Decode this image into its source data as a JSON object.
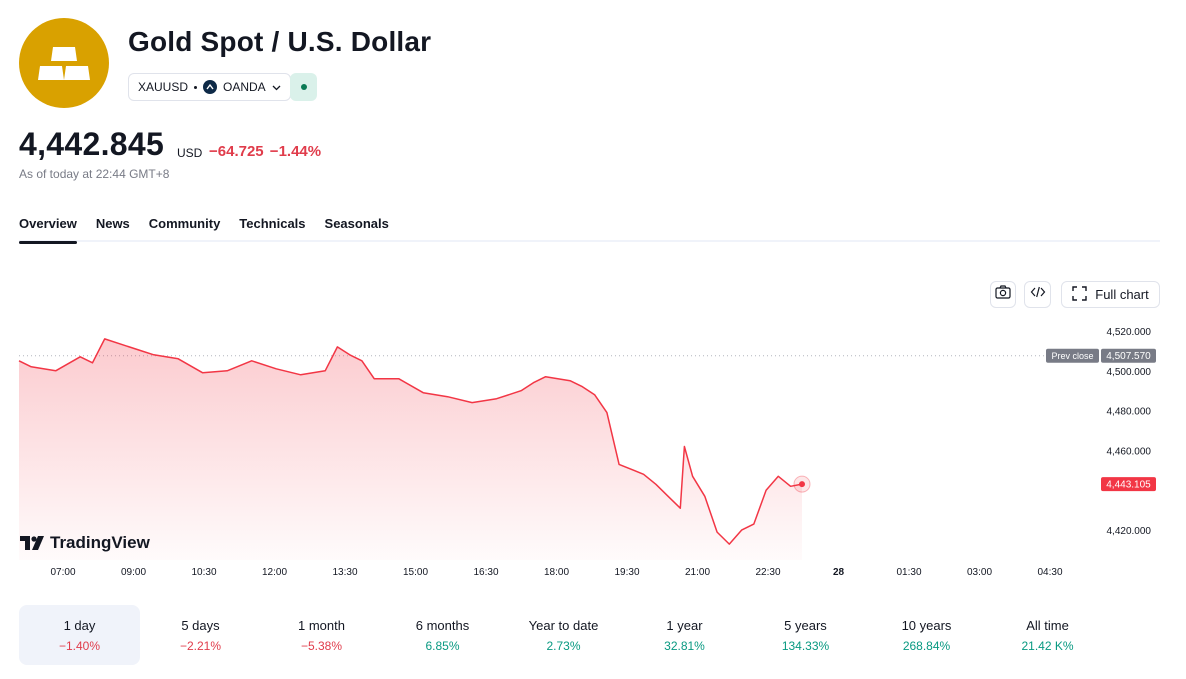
{
  "header": {
    "title": "Gold Spot / U.S. Dollar",
    "symbol": "XAUUSD",
    "exchange": "OANDA",
    "logo_icon": "gold-bars-icon",
    "logo_color": "#d9a100",
    "status_color": "#0b7a55"
  },
  "quote": {
    "price": "4,442.845",
    "currency": "USD",
    "change": "−64.725 −1.44%",
    "as_of": "As of today at 22:44 GMT+8",
    "down_color": "#e03c4b",
    "up_color": "#089981"
  },
  "tabs": [
    {
      "label": "Overview",
      "active": true
    },
    {
      "label": "News"
    },
    {
      "label": "Community"
    },
    {
      "label": "Technicals"
    },
    {
      "label": "Seasonals"
    }
  ],
  "toolbar": {
    "snapshot_icon": "camera-icon",
    "embed_icon": "code-icon",
    "full_chart_label": "Full chart"
  },
  "brand": {
    "name": "TradingView"
  },
  "chart_data": {
    "type": "area",
    "x": [
      "06:45",
      "07:00",
      "07:30",
      "08:00",
      "08:15",
      "08:30",
      "09:00",
      "09:15",
      "09:30",
      "10:00",
      "10:30",
      "11:00",
      "11:30",
      "12:00",
      "12:30",
      "13:00",
      "13:15",
      "13:30",
      "13:45",
      "14:00",
      "14:30",
      "15:00",
      "15:30",
      "16:00",
      "16:30",
      "17:00",
      "17:15",
      "17:30",
      "18:00",
      "18:15",
      "18:30",
      "18:45",
      "19:00",
      "19:30",
      "19:45",
      "20:00",
      "20:15",
      "20:20",
      "20:30",
      "20:45",
      "21:00",
      "21:15",
      "21:30",
      "21:45",
      "22:00",
      "22:15",
      "22:30",
      "22:44"
    ],
    "series": [
      {
        "values": [
          4505,
          4502,
          4500,
          4507,
          4504,
          4516,
          4512,
          4510,
          4508,
          4506,
          4499,
          4500,
          4505,
          4501,
          4498,
          4500,
          4512,
          4508,
          4505,
          4496,
          4496,
          4489,
          4487,
          4484,
          4486,
          4490,
          4494,
          4497,
          4495,
          4492,
          4488,
          4479,
          4453,
          4448,
          4443,
          4437,
          4431,
          4462,
          4447,
          4437,
          4419,
          4413,
          4420,
          4423,
          4440,
          4447,
          4442,
          4443.105
        ]
      }
    ],
    "xticks": [
      "07:00",
      "09:00",
      "10:30",
      "12:00",
      "13:30",
      "15:00",
      "16:30",
      "18:00",
      "19:30",
      "21:00",
      "22:30",
      "28",
      "01:30",
      "03:00",
      "04:30"
    ],
    "yticks": [
      "4,520.000",
      "4,500.000",
      "4,480.000",
      "4,460.000",
      "4,420.000"
    ],
    "ylim": [
      4405,
      4528
    ],
    "prev_close_label": "Prev close",
    "prev_close": 4507.57,
    "prev_close_text": "4,507.570",
    "last_value_text": "4,443.105",
    "line_color": "#f23645",
    "grid": false
  },
  "ranges": [
    {
      "label": "1 day",
      "value": "−1.40%",
      "trend": "neg",
      "active": true
    },
    {
      "label": "5 days",
      "value": "−2.21%",
      "trend": "neg"
    },
    {
      "label": "1 month",
      "value": "−5.38%",
      "trend": "neg"
    },
    {
      "label": "6 months",
      "value": "6.85%",
      "trend": "pos"
    },
    {
      "label": "Year to date",
      "value": "2.73%",
      "trend": "pos"
    },
    {
      "label": "1 year",
      "value": "32.81%",
      "trend": "pos"
    },
    {
      "label": "5 years",
      "value": "134.33%",
      "trend": "pos"
    },
    {
      "label": "10 years",
      "value": "268.84%",
      "trend": "pos"
    },
    {
      "label": "All time",
      "value": "21.42 K%",
      "trend": "pos"
    }
  ]
}
